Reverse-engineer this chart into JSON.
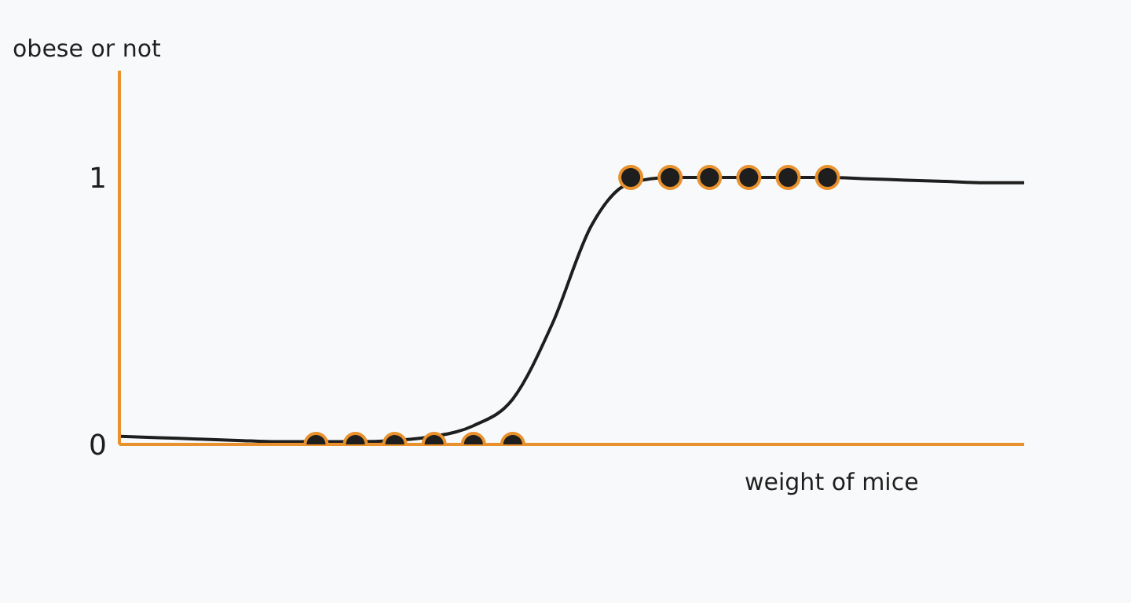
{
  "chart_data": {
    "type": "scatter",
    "xlabel": "weight of mice",
    "ylabel": "obese or not",
    "categories": [
      null,
      null,
      null,
      null,
      null,
      null,
      null,
      null,
      null,
      null,
      null,
      null,
      null,
      null,
      null,
      null,
      null,
      null,
      null,
      null,
      null,
      null,
      null,
      null
    ],
    "series": [
      {
        "type": "line",
        "color": "#1e1e1e",
        "marker": "none",
        "values": [
          0.03,
          0.025,
          0.02,
          0.015,
          0.01,
          0.01,
          0.01,
          0.015,
          0.03,
          0.07,
          0.17,
          0.45,
          0.82,
          0.98,
          1.0,
          1.0,
          1.0,
          1.0,
          1.0,
          0.995,
          0.99,
          0.985,
          0.98,
          0.98
        ]
      },
      {
        "color": "#1e1e1e",
        "marker": "circle",
        "values": [
          null,
          null,
          null,
          null,
          null,
          0,
          0,
          0,
          0,
          0,
          0,
          null,
          null,
          1,
          1,
          1,
          1,
          1,
          1,
          null,
          null,
          null,
          null,
          null
        ]
      }
    ],
    "ylim": [
      0,
      1.4
    ],
    "yticks": [
      0,
      1
    ],
    "tick_labels": "y",
    "grid": false
  }
}
